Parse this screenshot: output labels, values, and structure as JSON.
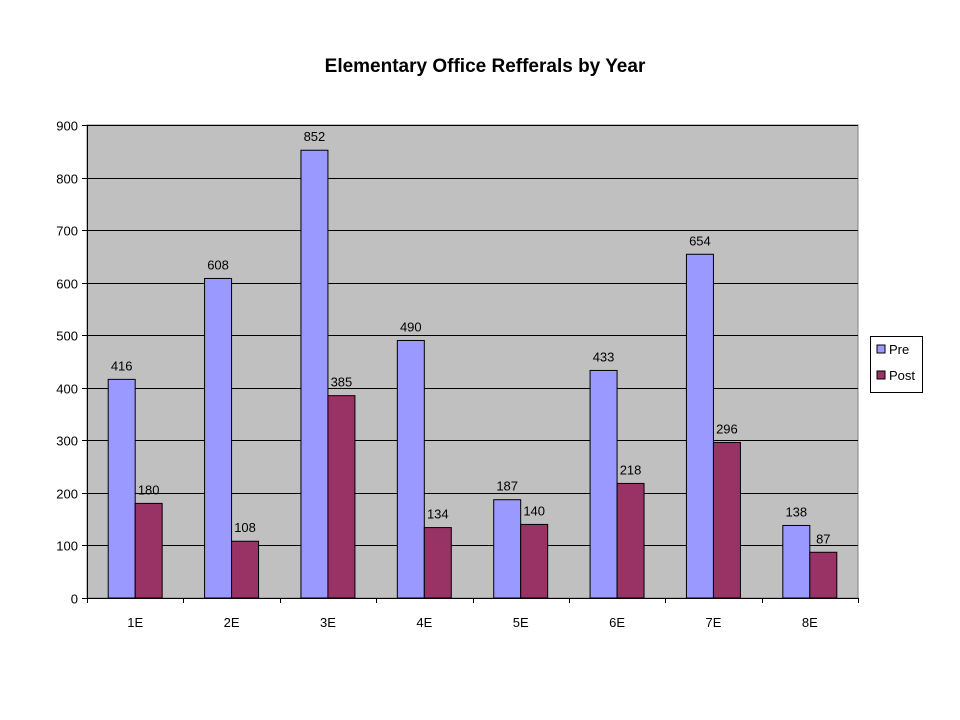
{
  "chart_data": {
    "type": "bar",
    "title": "Elementary Office Refferals by Year",
    "xlabel": "",
    "ylabel": "",
    "categories": [
      "1E",
      "2E",
      "3E",
      "4E",
      "5E",
      "6E",
      "7E",
      "8E"
    ],
    "series": [
      {
        "name": "Pre",
        "values": [
          416,
          608,
          852,
          490,
          187,
          433,
          654,
          138
        ],
        "color": "#9999FF"
      },
      {
        "name": "Post",
        "values": [
          180,
          108,
          385,
          134,
          140,
          218,
          296,
          87
        ],
        "color": "#993366"
      }
    ],
    "ylim": [
      0,
      900
    ],
    "yticks": [
      0,
      100,
      200,
      300,
      400,
      500,
      600,
      700,
      800,
      900
    ],
    "grid": true,
    "plot_background": "#C0C0C0",
    "legend_position": "right",
    "data_labels": true
  }
}
